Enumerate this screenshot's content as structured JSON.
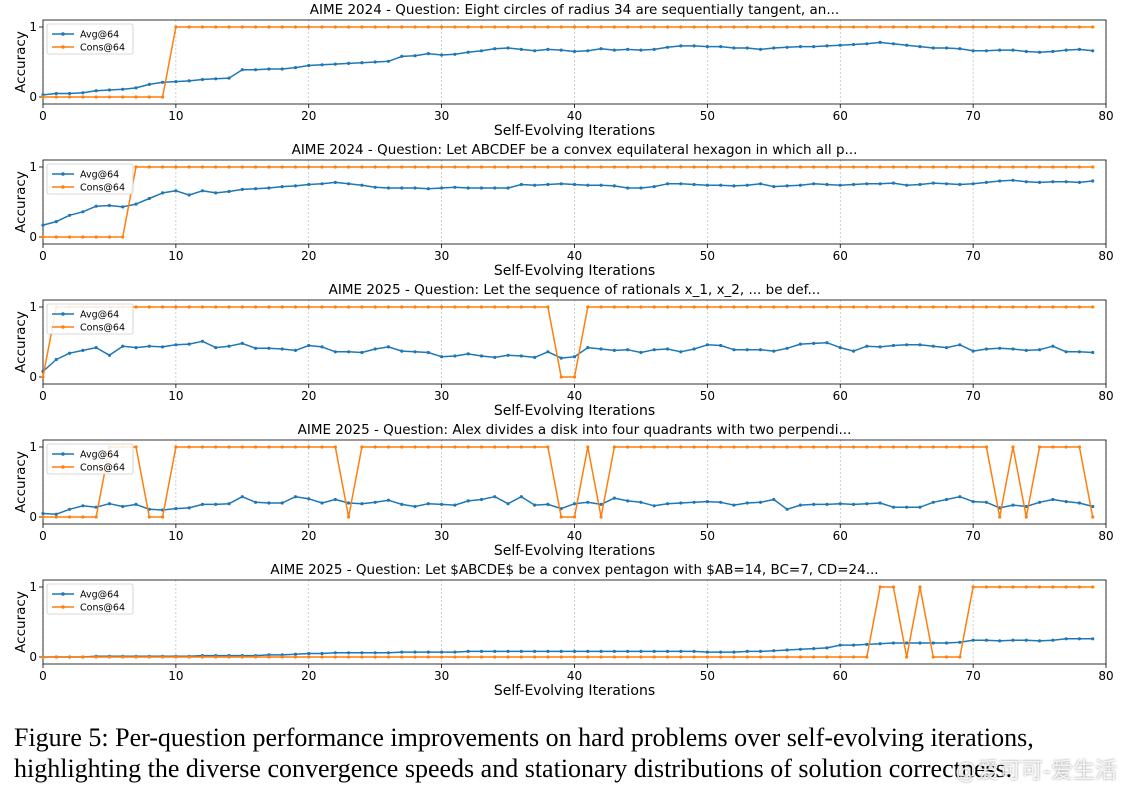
{
  "chart_data": [
    {
      "type": "line",
      "title": "AIME 2024 - Question: Eight circles of radius 34 are sequentially tangent, an...",
      "xlabel": "Self-Evolving Iterations",
      "ylabel": "Accuracy",
      "xlim": [
        0,
        80
      ],
      "ylim": [
        0,
        1
      ],
      "xticks": [
        "0",
        "10",
        "20",
        "30",
        "40",
        "50",
        "60",
        "70",
        "80"
      ],
      "yticks": [
        "0",
        "1"
      ],
      "grid": "x",
      "legend": "top-left",
      "series": [
        {
          "name": "Avg@64",
          "color": "#1f77b4",
          "values": [
            0.03,
            0.05,
            0.05,
            0.06,
            0.09,
            0.1,
            0.11,
            0.13,
            0.18,
            0.21,
            0.22,
            0.23,
            0.25,
            0.26,
            0.27,
            0.39,
            0.39,
            0.4,
            0.4,
            0.42,
            0.45,
            0.46,
            0.47,
            0.48,
            0.49,
            0.5,
            0.51,
            0.58,
            0.59,
            0.62,
            0.6,
            0.61,
            0.64,
            0.66,
            0.69,
            0.7,
            0.68,
            0.66,
            0.68,
            0.67,
            0.65,
            0.66,
            0.69,
            0.67,
            0.68,
            0.67,
            0.68,
            0.71,
            0.73,
            0.73,
            0.72,
            0.72,
            0.7,
            0.7,
            0.68,
            0.7,
            0.71,
            0.72,
            0.72,
            0.73,
            0.74,
            0.75,
            0.76,
            0.78,
            0.76,
            0.74,
            0.72,
            0.7,
            0.7,
            0.69,
            0.66,
            0.66,
            0.67,
            0.67,
            0.65,
            0.64,
            0.65,
            0.67,
            0.68,
            0.66
          ]
        },
        {
          "name": "Cons@64",
          "color": "#ff7f0e",
          "values": [
            0,
            0,
            0,
            0,
            0,
            0,
            0,
            0,
            0,
            0,
            1,
            1,
            1,
            1,
            1,
            1,
            1,
            1,
            1,
            1,
            1,
            1,
            1,
            1,
            1,
            1,
            1,
            1,
            1,
            1,
            1,
            1,
            1,
            1,
            1,
            1,
            1,
            1,
            1,
            1,
            1,
            1,
            1,
            1,
            1,
            1,
            1,
            1,
            1,
            1,
            1,
            1,
            1,
            1,
            1,
            1,
            1,
            1,
            1,
            1,
            1,
            1,
            1,
            1,
            1,
            1,
            1,
            1,
            1,
            1,
            1,
            1,
            1,
            1,
            1,
            1,
            1,
            1,
            1,
            1
          ]
        }
      ]
    },
    {
      "type": "line",
      "title": "AIME 2024 - Question: Let ABCDEF be a convex equilateral hexagon in which all p...",
      "xlabel": "Self-Evolving Iterations",
      "ylabel": "Accuracy",
      "xlim": [
        0,
        80
      ],
      "ylim": [
        0,
        1
      ],
      "xticks": [
        "0",
        "10",
        "20",
        "30",
        "40",
        "50",
        "60",
        "70",
        "80"
      ],
      "yticks": [
        "0",
        "1"
      ],
      "grid": "x",
      "legend": "top-left",
      "series": [
        {
          "name": "Avg@64",
          "color": "#1f77b4",
          "values": [
            0.17,
            0.22,
            0.31,
            0.36,
            0.44,
            0.45,
            0.43,
            0.47,
            0.55,
            0.63,
            0.66,
            0.6,
            0.66,
            0.63,
            0.65,
            0.68,
            0.69,
            0.7,
            0.72,
            0.73,
            0.75,
            0.76,
            0.78,
            0.76,
            0.74,
            0.71,
            0.7,
            0.7,
            0.7,
            0.69,
            0.7,
            0.71,
            0.7,
            0.7,
            0.7,
            0.7,
            0.75,
            0.74,
            0.75,
            0.76,
            0.75,
            0.74,
            0.74,
            0.73,
            0.7,
            0.7,
            0.72,
            0.76,
            0.76,
            0.75,
            0.74,
            0.74,
            0.73,
            0.74,
            0.76,
            0.72,
            0.73,
            0.74,
            0.76,
            0.75,
            0.74,
            0.75,
            0.76,
            0.76,
            0.77,
            0.74,
            0.75,
            0.77,
            0.76,
            0.75,
            0.76,
            0.78,
            0.8,
            0.81,
            0.79,
            0.78,
            0.79,
            0.79,
            0.78,
            0.8
          ]
        },
        {
          "name": "Cons@64",
          "color": "#ff7f0e",
          "values": [
            0,
            0,
            0,
            0,
            0,
            0,
            0,
            1,
            1,
            1,
            1,
            1,
            1,
            1,
            1,
            1,
            1,
            1,
            1,
            1,
            1,
            1,
            1,
            1,
            1,
            1,
            1,
            1,
            1,
            1,
            1,
            1,
            1,
            1,
            1,
            1,
            1,
            1,
            1,
            1,
            1,
            1,
            1,
            1,
            1,
            1,
            1,
            1,
            1,
            1,
            1,
            1,
            1,
            1,
            1,
            1,
            1,
            1,
            1,
            1,
            1,
            1,
            1,
            1,
            1,
            1,
            1,
            1,
            1,
            1,
            1,
            1,
            1,
            1,
            1,
            1,
            1,
            1,
            1,
            1
          ]
        }
      ]
    },
    {
      "type": "line",
      "title": "AIME 2025 - Question: Let the sequence of rationals x_1, x_2, ... be def...",
      "xlabel": "Self-Evolving Iterations",
      "ylabel": "Accuracy",
      "xlim": [
        0,
        80
      ],
      "ylim": [
        0,
        1
      ],
      "xticks": [
        "0",
        "10",
        "20",
        "30",
        "40",
        "50",
        "60",
        "70",
        "80"
      ],
      "yticks": [
        "0",
        "1"
      ],
      "grid": "x",
      "legend": "top-left",
      "series": [
        {
          "name": "Avg@64",
          "color": "#1f77b4",
          "values": [
            0.08,
            0.25,
            0.34,
            0.38,
            0.42,
            0.31,
            0.44,
            0.42,
            0.44,
            0.43,
            0.46,
            0.47,
            0.51,
            0.42,
            0.44,
            0.48,
            0.41,
            0.41,
            0.4,
            0.38,
            0.45,
            0.43,
            0.36,
            0.36,
            0.35,
            0.4,
            0.43,
            0.37,
            0.36,
            0.35,
            0.29,
            0.3,
            0.33,
            0.3,
            0.28,
            0.31,
            0.3,
            0.28,
            0.36,
            0.27,
            0.29,
            0.42,
            0.4,
            0.38,
            0.39,
            0.35,
            0.39,
            0.4,
            0.36,
            0.4,
            0.46,
            0.45,
            0.39,
            0.39,
            0.39,
            0.37,
            0.41,
            0.47,
            0.48,
            0.49,
            0.42,
            0.37,
            0.44,
            0.43,
            0.45,
            0.46,
            0.46,
            0.44,
            0.42,
            0.46,
            0.37,
            0.4,
            0.41,
            0.4,
            0.38,
            0.39,
            0.44,
            0.36,
            0.36,
            0.35
          ]
        },
        {
          "name": "Cons@64",
          "color": "#ff7f0e",
          "values": [
            0,
            1,
            1,
            1,
            1,
            1,
            1,
            1,
            1,
            1,
            1,
            1,
            1,
            1,
            1,
            1,
            1,
            1,
            1,
            1,
            1,
            1,
            1,
            1,
            1,
            1,
            1,
            1,
            1,
            1,
            1,
            1,
            1,
            1,
            1,
            1,
            1,
            1,
            1,
            0,
            0,
            1,
            1,
            1,
            1,
            1,
            1,
            1,
            1,
            1,
            1,
            1,
            1,
            1,
            1,
            1,
            1,
            1,
            1,
            1,
            1,
            1,
            1,
            1,
            1,
            1,
            1,
            1,
            1,
            1,
            1,
            1,
            1,
            1,
            1,
            1,
            1,
            1,
            1,
            1
          ]
        }
      ]
    },
    {
      "type": "line",
      "title": "AIME 2025 - Question: Alex divides a disk into four quadrants with two perpendi...",
      "xlabel": "Self-Evolving Iterations",
      "ylabel": "Accuracy",
      "xlim": [
        0,
        80
      ],
      "ylim": [
        0,
        1
      ],
      "xticks": [
        "0",
        "10",
        "20",
        "30",
        "40",
        "50",
        "60",
        "70",
        "80"
      ],
      "yticks": [
        "0",
        "1"
      ],
      "grid": "x",
      "legend": "top-left",
      "series": [
        {
          "name": "Avg@64",
          "color": "#1f77b4",
          "values": [
            0.05,
            0.04,
            0.11,
            0.16,
            0.14,
            0.19,
            0.15,
            0.18,
            0.11,
            0.1,
            0.12,
            0.13,
            0.18,
            0.18,
            0.19,
            0.29,
            0.21,
            0.2,
            0.2,
            0.29,
            0.26,
            0.2,
            0.25,
            0.2,
            0.19,
            0.21,
            0.24,
            0.18,
            0.15,
            0.19,
            0.18,
            0.17,
            0.23,
            0.25,
            0.29,
            0.19,
            0.29,
            0.17,
            0.18,
            0.12,
            0.19,
            0.21,
            0.18,
            0.27,
            0.23,
            0.21,
            0.16,
            0.19,
            0.2,
            0.21,
            0.22,
            0.21,
            0.17,
            0.2,
            0.21,
            0.25,
            0.11,
            0.17,
            0.18,
            0.18,
            0.19,
            0.18,
            0.19,
            0.2,
            0.14,
            0.14,
            0.14,
            0.21,
            0.25,
            0.29,
            0.22,
            0.21,
            0.13,
            0.17,
            0.15,
            0.21,
            0.25,
            0.22,
            0.2,
            0.15
          ]
        },
        {
          "name": "Cons@64",
          "color": "#ff7f0e",
          "values": [
            0,
            0,
            0,
            0,
            0,
            1,
            1,
            1,
            0,
            0,
            1,
            1,
            1,
            1,
            1,
            1,
            1,
            1,
            1,
            1,
            1,
            1,
            1,
            0,
            1,
            1,
            1,
            1,
            1,
            1,
            1,
            1,
            1,
            1,
            1,
            1,
            1,
            1,
            1,
            0,
            0,
            1,
            0,
            1,
            1,
            1,
            1,
            1,
            1,
            1,
            1,
            1,
            1,
            1,
            1,
            1,
            1,
            1,
            1,
            1,
            1,
            1,
            1,
            1,
            1,
            1,
            1,
            1,
            1,
            1,
            1,
            1,
            0,
            1,
            0,
            1,
            1,
            1,
            1,
            0
          ]
        }
      ]
    },
    {
      "type": "line",
      "title": "AIME 2025 - Question: Let $ABCDE$ be a convex pentagon with $AB=14, BC=7, CD=24...",
      "xlabel": "Self-Evolving Iterations",
      "ylabel": "Accuracy",
      "xlim": [
        0,
        80
      ],
      "ylim": [
        0,
        1
      ],
      "xticks": [
        "0",
        "10",
        "20",
        "30",
        "40",
        "50",
        "60",
        "70",
        "80"
      ],
      "yticks": [
        "0",
        "1"
      ],
      "grid": "x",
      "legend": "top-left",
      "series": [
        {
          "name": "Avg@64",
          "color": "#1f77b4",
          "values": [
            0.0,
            0.0,
            0.0,
            0.0,
            0.01,
            0.01,
            0.01,
            0.01,
            0.01,
            0.01,
            0.01,
            0.01,
            0.02,
            0.02,
            0.02,
            0.02,
            0.02,
            0.03,
            0.03,
            0.04,
            0.05,
            0.05,
            0.06,
            0.06,
            0.06,
            0.06,
            0.06,
            0.07,
            0.07,
            0.07,
            0.07,
            0.07,
            0.08,
            0.08,
            0.08,
            0.08,
            0.08,
            0.08,
            0.08,
            0.08,
            0.08,
            0.08,
            0.08,
            0.08,
            0.08,
            0.08,
            0.08,
            0.08,
            0.08,
            0.08,
            0.07,
            0.07,
            0.07,
            0.08,
            0.08,
            0.09,
            0.1,
            0.11,
            0.12,
            0.13,
            0.17,
            0.17,
            0.18,
            0.19,
            0.2,
            0.2,
            0.2,
            0.2,
            0.2,
            0.21,
            0.24,
            0.24,
            0.23,
            0.24,
            0.24,
            0.23,
            0.24,
            0.26,
            0.26,
            0.26
          ]
        },
        {
          "name": "Cons@64",
          "color": "#ff7f0e",
          "values": [
            0,
            0,
            0,
            0,
            0,
            0,
            0,
            0,
            0,
            0,
            0,
            0,
            0,
            0,
            0,
            0,
            0,
            0,
            0,
            0,
            0,
            0,
            0,
            0,
            0,
            0,
            0,
            0,
            0,
            0,
            0,
            0,
            0,
            0,
            0,
            0,
            0,
            0,
            0,
            0,
            0,
            0,
            0,
            0,
            0,
            0,
            0,
            0,
            0,
            0,
            0,
            0,
            0,
            0,
            0,
            0,
            0,
            0,
            0,
            0,
            0,
            0,
            0,
            1,
            1,
            0,
            1,
            0,
            0,
            0,
            1,
            1,
            1,
            1,
            1,
            1,
            1,
            1,
            1,
            1
          ]
        }
      ]
    }
  ],
  "caption": "Figure 5: Per-question performance improvements on hard problems over self-evolving iterations, highlighting the diverse convergence speeds and stationary distributions of solution correctness.",
  "watermark": "@爱可可-爱生活"
}
